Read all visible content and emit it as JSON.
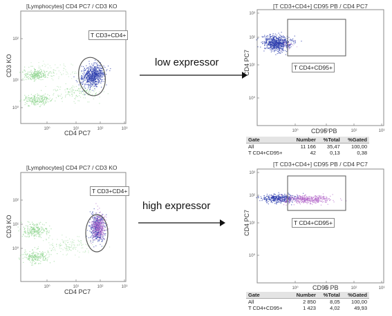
{
  "labels": {
    "low": "low expressor",
    "high": "high expressor"
  },
  "colors": {
    "lymph_scatter": "#7fcf7f",
    "cd4_cluster": "#2d3fae",
    "cd95_positive": "#b063c8",
    "gate_border": "#555555",
    "arrow": "#111111"
  },
  "chart_data": [
    {
      "id": "top-left",
      "type": "scatter",
      "title": "[Lymphocytes] CD4 PC7 / CD3 KO",
      "xlabel": "CD4 PC7",
      "ylabel": "CD3 KO",
      "x_ticks": [
        "10⁰",
        "10¹",
        "10²",
        "10³"
      ],
      "y_ticks": [
        "10⁰",
        "10¹",
        "10²"
      ],
      "gate": "T CD3+CD4+",
      "scale": "log"
    },
    {
      "id": "top-right",
      "type": "scatter",
      "title": "[T CD3+CD4+] CD95 PB / CD4 PC7",
      "xlabel": "CD95 PB",
      "ylabel": "CD4 PC7",
      "x_ticks": [
        "10⁰",
        "10¹",
        "10²",
        "10³"
      ],
      "y_ticks": [
        "10⁰",
        "10¹",
        "10²",
        "10³"
      ],
      "gate": "T CD4+CD95+",
      "scale": "log"
    },
    {
      "id": "bottom-left",
      "type": "scatter",
      "title": "[Lymphocytes] CD4 PC7 / CD3 KO",
      "xlabel": "CD4 PC7",
      "ylabel": "CD3 KO",
      "x_ticks": [
        "10⁰",
        "10¹",
        "10²",
        "10³"
      ],
      "y_ticks": [
        "10⁰",
        "10¹",
        "10²"
      ],
      "gate": "T CD3+CD4+",
      "scale": "log"
    },
    {
      "id": "bottom-right",
      "type": "scatter",
      "title": "[T CD3+CD4+] CD95 PB / CD4 PC7",
      "xlabel": "CD95 PB",
      "ylabel": "CD4 PC7",
      "x_ticks": [
        "10⁰",
        "10¹",
        "10²",
        "10³"
      ],
      "y_ticks": [
        "10⁰",
        "10¹",
        "10²",
        "10³"
      ],
      "gate": "T CD4+CD95+",
      "scale": "log"
    }
  ],
  "tables": {
    "top": {
      "headers": [
        "Gate",
        "Number",
        "%Total",
        "%Gated"
      ],
      "rows": [
        [
          "All",
          "11 166",
          "35,47",
          "100,00"
        ],
        [
          "T CD4+CD95+",
          "42",
          "0,13",
          "0,38"
        ]
      ]
    },
    "bottom": {
      "headers": [
        "Gate",
        "Number",
        "%Total",
        "%Gated"
      ],
      "rows": [
        [
          "All",
          "2 850",
          "8,05",
          "100,00"
        ],
        [
          "T CD4+CD95+",
          "1 423",
          "4,02",
          "49,93"
        ]
      ]
    }
  }
}
